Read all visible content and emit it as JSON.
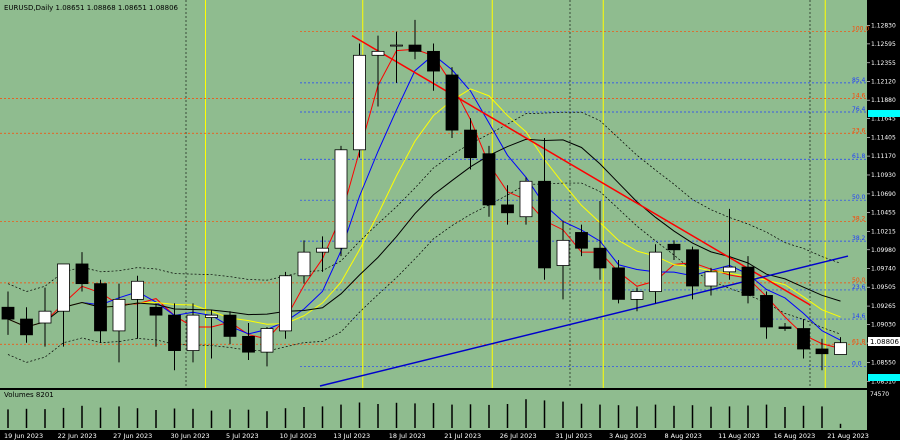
{
  "header": {
    "title": "EURUSD,Daily  1.08651 1.08868 1.08651 1.08806"
  },
  "volume_label": "Volumes 8201",
  "current_price": "1.08806",
  "colors": {
    "background": "#8fbc8f",
    "bull_candle": "#ffffff",
    "bear_candle": "#000000",
    "red_trendline": "#ff0000",
    "blue_trendline": "#0000cc",
    "fib_red": "#ff4500",
    "fib_blue": "#1e3cff",
    "ma_red": "#ff0000",
    "ma_blue": "#0000ff",
    "ma_yellow": "#ffff00",
    "ma_black": "#000000",
    "price_badge": "#00ffff"
  },
  "chart_data": {
    "type": "candlestick",
    "symbol": "EURUSD",
    "timeframe": "Daily",
    "ylim": [
      1.0825,
      1.13
    ],
    "y_ticks": [
      "1.12830",
      "1.12595",
      "1.12355",
      "1.12120",
      "1.11880",
      "1.11645",
      "1.11405",
      "1.11170",
      "1.10930",
      "1.10690",
      "1.10455",
      "1.10215",
      "1.09980",
      "1.09740",
      "1.09505",
      "1.09265",
      "1.09030",
      "1.08795",
      "1.08550",
      "1.08310"
    ],
    "x_ticks": [
      "19 Jun 2023",
      "22 Jun 2023",
      "27 Jun 2023",
      "30 Jun 2023",
      "5 Jul 2023",
      "10 Jul 2023",
      "13 Jul 2023",
      "18 Jul 2023",
      "21 Jul 2023",
      "26 Jul 2023",
      "31 Jul 2023",
      "3 Aug 2023",
      "8 Aug 2023",
      "11 Aug 2023",
      "16 Aug 2023",
      "21 Aug 2023"
    ],
    "volume_ticks": [
      "74570"
    ],
    "candles": [
      {
        "o": 1.0925,
        "h": 1.0945,
        "l": 1.089,
        "c": 1.091
      },
      {
        "o": 1.091,
        "h": 1.0925,
        "l": 1.088,
        "c": 1.089
      },
      {
        "o": 1.0905,
        "h": 1.095,
        "l": 1.0875,
        "c": 1.092
      },
      {
        "o": 1.092,
        "h": 1.098,
        "l": 1.0875,
        "c": 1.098
      },
      {
        "o": 1.098,
        "h": 1.0995,
        "l": 1.0945,
        "c": 1.0955
      },
      {
        "o": 1.0955,
        "h": 1.096,
        "l": 1.088,
        "c": 1.0895
      },
      {
        "o": 1.0895,
        "h": 1.0955,
        "l": 1.0855,
        "c": 1.0935
      },
      {
        "o": 1.0935,
        "h": 1.0965,
        "l": 1.0885,
        "c": 1.0958
      },
      {
        "o": 1.0925,
        "h": 1.093,
        "l": 1.0875,
        "c": 1.0915
      },
      {
        "o": 1.0915,
        "h": 1.093,
        "l": 1.0845,
        "c": 1.087
      },
      {
        "o": 1.087,
        "h": 1.093,
        "l": 1.0855,
        "c": 1.0915
      },
      {
        "o": 1.0912,
        "h": 1.0922,
        "l": 1.086,
        "c": 1.0915
      },
      {
        "o": 1.0915,
        "h": 1.092,
        "l": 1.0878,
        "c": 1.0888
      },
      {
        "o": 1.0888,
        "h": 1.0905,
        "l": 1.0858,
        "c": 1.0868
      },
      {
        "o": 1.0868,
        "h": 1.09,
        "l": 1.085,
        "c": 1.0898
      },
      {
        "o": 1.0895,
        "h": 1.097,
        "l": 1.0885,
        "c": 1.0965
      },
      {
        "o": 1.0965,
        "h": 1.101,
        "l": 1.0955,
        "c": 1.0995
      },
      {
        "o": 1.0995,
        "h": 1.1015,
        "l": 1.097,
        "c": 1.1
      },
      {
        "o": 1.1,
        "h": 1.113,
        "l": 1.099,
        "c": 1.1125
      },
      {
        "o": 1.1125,
        "h": 1.126,
        "l": 1.1115,
        "c": 1.1245
      },
      {
        "o": 1.1245,
        "h": 1.127,
        "l": 1.118,
        "c": 1.125
      },
      {
        "o": 1.1258,
        "h": 1.1275,
        "l": 1.121,
        "c": 1.1258
      },
      {
        "o": 1.1258,
        "h": 1.129,
        "l": 1.124,
        "c": 1.125
      },
      {
        "o": 1.125,
        "h": 1.126,
        "l": 1.12,
        "c": 1.1225
      },
      {
        "o": 1.122,
        "h": 1.123,
        "l": 1.114,
        "c": 1.115
      },
      {
        "o": 1.115,
        "h": 1.1165,
        "l": 1.11,
        "c": 1.1115
      },
      {
        "o": 1.112,
        "h": 1.113,
        "l": 1.104,
        "c": 1.1055
      },
      {
        "o": 1.1055,
        "h": 1.108,
        "l": 1.103,
        "c": 1.1045
      },
      {
        "o": 1.104,
        "h": 1.109,
        "l": 1.103,
        "c": 1.1085
      },
      {
        "o": 1.1085,
        "h": 1.114,
        "l": 1.096,
        "c": 1.0975
      },
      {
        "o": 1.0978,
        "h": 1.1035,
        "l": 1.0935,
        "c": 1.101
      },
      {
        "o": 1.102,
        "h": 1.103,
        "l": 1.099,
        "c": 1.1
      },
      {
        "o": 1.1,
        "h": 1.106,
        "l": 1.096,
        "c": 1.0975
      },
      {
        "o": 1.0975,
        "h": 1.0985,
        "l": 1.093,
        "c": 1.0935
      },
      {
        "o": 1.0935,
        "h": 1.095,
        "l": 1.092,
        "c": 1.0945
      },
      {
        "o": 1.0945,
        "h": 1.1005,
        "l": 1.093,
        "c": 1.0995
      },
      {
        "o": 1.1005,
        "h": 1.101,
        "l": 1.0985,
        "c": 1.0998
      },
      {
        "o": 1.0998,
        "h": 1.1002,
        "l": 1.0935,
        "c": 1.0952
      },
      {
        "o": 1.0952,
        "h": 1.0975,
        "l": 1.094,
        "c": 1.097
      },
      {
        "o": 1.097,
        "h": 1.105,
        "l": 1.096,
        "c": 1.0976
      },
      {
        "o": 1.0976,
        "h": 1.099,
        "l": 1.093,
        "c": 1.094
      },
      {
        "o": 1.094,
        "h": 1.0945,
        "l": 1.0885,
        "c": 1.09
      },
      {
        "o": 1.09,
        "h": 1.0905,
        "l": 1.0895,
        "c": 1.0898
      },
      {
        "o": 1.0898,
        "h": 1.091,
        "l": 1.086,
        "c": 1.0872
      },
      {
        "o": 1.0872,
        "h": 1.0885,
        "l": 1.0845,
        "c": 1.0866
      },
      {
        "o": 1.0865,
        "h": 1.0887,
        "l": 1.0865,
        "c": 1.088
      }
    ],
    "volumes": [
      62,
      64,
      63,
      67,
      74,
      68,
      72,
      66,
      60,
      65,
      64,
      58,
      62,
      61,
      56,
      66,
      70,
      72,
      78,
      85,
      80,
      84,
      82,
      83,
      78,
      79,
      77,
      80,
      96,
      92,
      88,
      81,
      78,
      76,
      72,
      78,
      74,
      76,
      71,
      72,
      75,
      78,
      70,
      74,
      72,
      14
    ],
    "fib_levels": [
      {
        "label": "100.0",
        "price": 1.1275,
        "color": "red"
      },
      {
        "label": "85.4",
        "price": 1.121,
        "color": "blue"
      },
      {
        "label": "76.4",
        "price": 1.1173,
        "color": "blue"
      },
      {
        "label": "61.8",
        "price": 1.1113,
        "color": "blue"
      },
      {
        "label": "50.0",
        "price": 1.1061,
        "color": "blue"
      },
      {
        "label": "38.2",
        "price": 1.1009,
        "color": "blue"
      },
      {
        "label": "23.6",
        "price": 1.0947,
        "color": "blue"
      },
      {
        "label": "14.6",
        "price": 1.091,
        "color": "blue"
      },
      {
        "label": "0.0",
        "price": 1.085,
        "color": "blue"
      }
    ],
    "fib_levels_red": [
      {
        "label": "14.6",
        "price": 1.119
      },
      {
        "label": "23.6",
        "price": 1.1146
      },
      {
        "label": "38.2",
        "price": 1.1034
      },
      {
        "label": "50.0",
        "price": 1.0956
      },
      {
        "label": "61.8",
        "price": 1.0878
      }
    ]
  }
}
